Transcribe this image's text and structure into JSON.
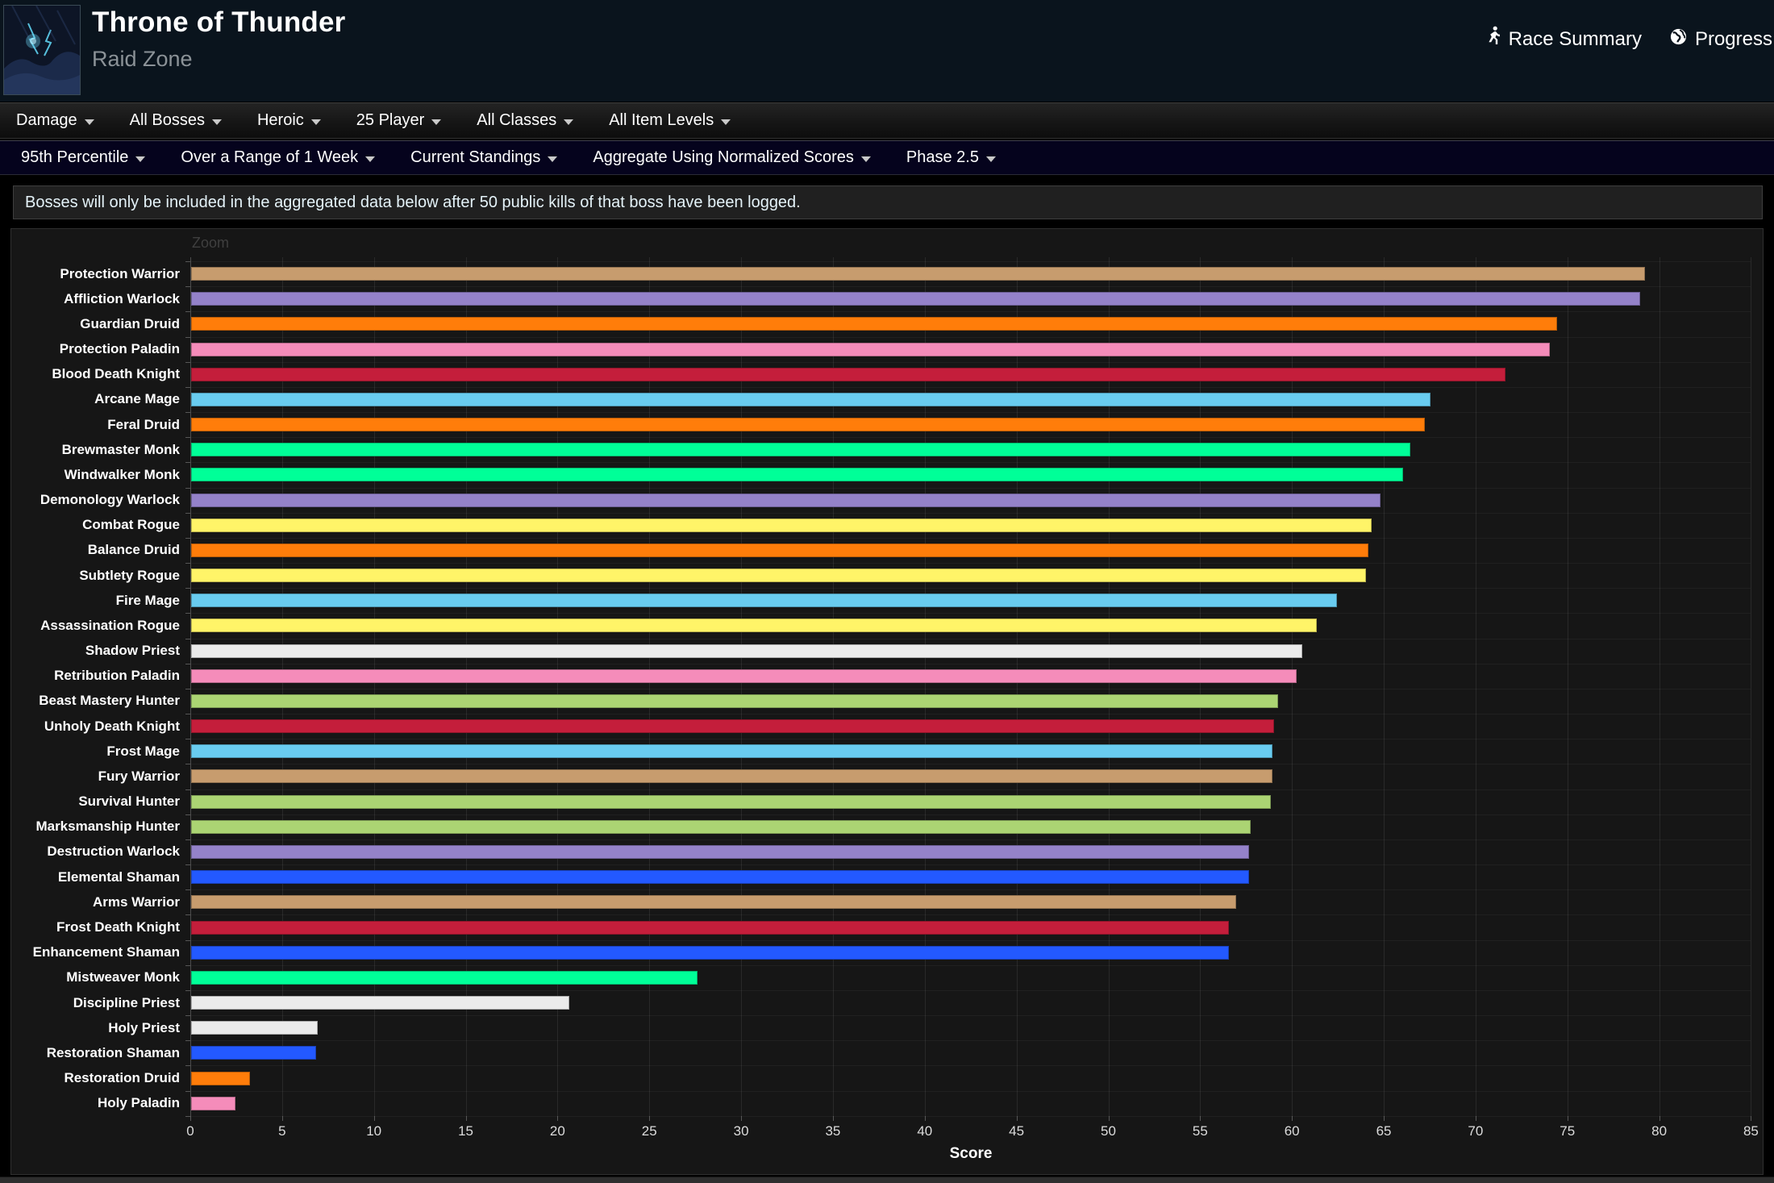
{
  "header": {
    "title": "Throne of Thunder",
    "subtitle": "Raid Zone",
    "links": [
      {
        "label": "Race Summary",
        "icon": "runner-icon"
      },
      {
        "label": "Progress",
        "icon": "globe-icon"
      }
    ]
  },
  "nav_primary": {
    "items": [
      "Damage",
      "All Bosses",
      "Heroic",
      "25 Player",
      "All Classes",
      "All Item Levels"
    ]
  },
  "nav_secondary": {
    "items": [
      "95th Percentile",
      "Over a Range of 1 Week",
      "Current Standings",
      "Aggregate Using Normalized Scores",
      "Phase 2.5"
    ]
  },
  "notice": {
    "text": "Bosses will only be included in the aggregated data below after 50 public kills of that boss have been logged."
  },
  "chart_data": {
    "type": "bar",
    "orientation": "horizontal",
    "zoom_label": "Zoom",
    "xlabel": "Score",
    "xlim": [
      0,
      85
    ],
    "xticks": [
      0,
      5,
      10,
      15,
      20,
      25,
      30,
      35,
      40,
      45,
      50,
      55,
      60,
      65,
      70,
      75,
      80,
      85
    ],
    "grid": "vertical",
    "background": "#161616",
    "bars": [
      {
        "label": "Protection Warrior",
        "value": 79.2,
        "color": "#C79C6E"
      },
      {
        "label": "Affliction Warlock",
        "value": 78.9,
        "color": "#9482C9"
      },
      {
        "label": "Guardian Druid",
        "value": 74.4,
        "color": "#FF7D0A"
      },
      {
        "label": "Protection Paladin",
        "value": 74.0,
        "color": "#F58CBA"
      },
      {
        "label": "Blood Death Knight",
        "value": 71.6,
        "color": "#C41E3B"
      },
      {
        "label": "Arcane Mage",
        "value": 67.5,
        "color": "#69CCF0"
      },
      {
        "label": "Feral Druid",
        "value": 67.2,
        "color": "#FF7D0A"
      },
      {
        "label": "Brewmaster Monk",
        "value": 66.4,
        "color": "#00FF98"
      },
      {
        "label": "Windwalker Monk",
        "value": 66.0,
        "color": "#00FF98"
      },
      {
        "label": "Demonology Warlock",
        "value": 64.8,
        "color": "#9482C9"
      },
      {
        "label": "Combat Rogue",
        "value": 64.3,
        "color": "#FFF468"
      },
      {
        "label": "Balance Druid",
        "value": 64.1,
        "color": "#FF7D0A"
      },
      {
        "label": "Subtlety Rogue",
        "value": 64.0,
        "color": "#FFF468"
      },
      {
        "label": "Fire Mage",
        "value": 62.4,
        "color": "#69CCF0"
      },
      {
        "label": "Assassination Rogue",
        "value": 61.3,
        "color": "#FFF468"
      },
      {
        "label": "Shadow Priest",
        "value": 60.5,
        "color": "#EBEBEB"
      },
      {
        "label": "Retribution Paladin",
        "value": 60.2,
        "color": "#F58CBA"
      },
      {
        "label": "Beast Mastery Hunter",
        "value": 59.2,
        "color": "#ABD473"
      },
      {
        "label": "Unholy Death Knight",
        "value": 59.0,
        "color": "#C41E3B"
      },
      {
        "label": "Frost Mage",
        "value": 58.9,
        "color": "#69CCF0"
      },
      {
        "label": "Fury Warrior",
        "value": 58.9,
        "color": "#C79C6E"
      },
      {
        "label": "Survival Hunter",
        "value": 58.8,
        "color": "#ABD473"
      },
      {
        "label": "Marksmanship Hunter",
        "value": 57.7,
        "color": "#ABD473"
      },
      {
        "label": "Destruction Warlock",
        "value": 57.6,
        "color": "#9482C9"
      },
      {
        "label": "Elemental Shaman",
        "value": 57.6,
        "color": "#2359FF"
      },
      {
        "label": "Arms Warrior",
        "value": 56.9,
        "color": "#C79C6E"
      },
      {
        "label": "Frost Death Knight",
        "value": 56.5,
        "color": "#C41E3B"
      },
      {
        "label": "Enhancement Shaman",
        "value": 56.5,
        "color": "#2359FF"
      },
      {
        "label": "Mistweaver Monk",
        "value": 27.6,
        "color": "#00FF98"
      },
      {
        "label": "Discipline Priest",
        "value": 20.6,
        "color": "#EBEBEB"
      },
      {
        "label": "Holy Priest",
        "value": 6.9,
        "color": "#EBEBEB"
      },
      {
        "label": "Restoration Shaman",
        "value": 6.8,
        "color": "#2359FF"
      },
      {
        "label": "Restoration Druid",
        "value": 3.2,
        "color": "#FF7D0A"
      },
      {
        "label": "Holy Paladin",
        "value": 2.4,
        "color": "#F58CBA"
      }
    ]
  }
}
